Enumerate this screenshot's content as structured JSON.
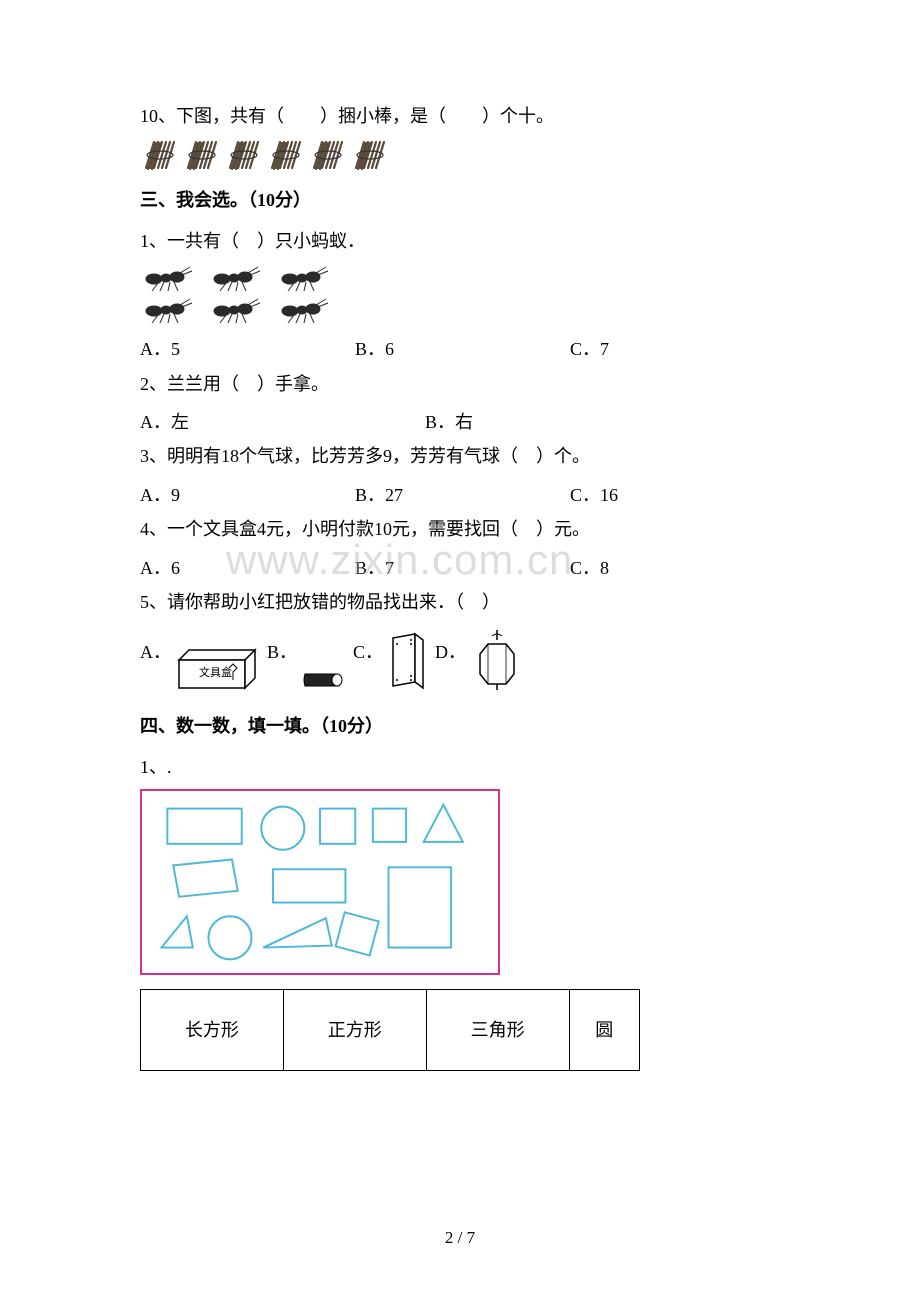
{
  "q10": "10、下图，共有（　　）捆小棒，是（　　）个十。",
  "sticks": {
    "count": 6,
    "color": "#5a4a3a"
  },
  "section3_title": "三、我会选。（10分）",
  "q3_1": "1、一共有（　）只小蚂蚁．",
  "ants": {
    "rows": 2,
    "cols": 3,
    "color": "#2a2a2a"
  },
  "q3_1_opts": {
    "a": "A．5",
    "b": "B．6",
    "c": "C．7"
  },
  "q3_2": "2、兰兰用（　）手拿。",
  "q3_2_opts": {
    "a": "A．左",
    "b": "B．右"
  },
  "q3_3": "3、明明有18个气球，比芳芳多9，芳芳有气球（　）个。",
  "q3_3_opts": {
    "a": "A．9",
    "b": "B．27",
    "c": "C．16"
  },
  "q3_4": "4、一个文具盒4元，小明付款10元，需要找回（　）元。",
  "q3_4_opts": {
    "a": "A．6",
    "b": "B．7",
    "c": "C．8"
  },
  "q3_5": "5、请你帮助小红把放错的物品找出来．（　）",
  "q3_5_opts": {
    "a": "A．",
    "b": "B．",
    "c": "C．",
    "d": "D．"
  },
  "section4_title": "四、数一数，填一填。（10分）",
  "q4_1": "1、.",
  "shapes_border_color": "#d63384",
  "shapes_stroke_color": "#4db8d8",
  "table_headers": [
    "长方形",
    "正方形",
    "三角形",
    "圆"
  ],
  "watermark": "www.zixin.com.cn",
  "page_number": "2 / 7",
  "pencilcase_label": "文具盒"
}
